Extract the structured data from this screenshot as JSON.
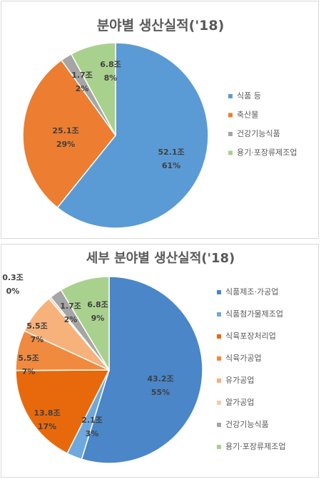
{
  "chart_data": [
    {
      "type": "pie",
      "title": "분야별 생산실적('18)",
      "slices": [
        {
          "name": "식품 등",
          "value": 52.1,
          "value_label": "52.1조",
          "percent_label": "61%",
          "color": "#5b9bd5"
        },
        {
          "name": "축산물",
          "value": 25.1,
          "value_label": "25.1조",
          "percent_label": "29%",
          "color": "#ed7d31"
        },
        {
          "name": "건강기능식품",
          "value": 1.7,
          "value_label": "1.7조",
          "percent_label": "2%",
          "color": "#a5a5a5"
        },
        {
          "name": "용기·포장류제조업",
          "value": 6.8,
          "value_label": "6.8조",
          "percent_label": "8%",
          "color": "#a9d18e"
        }
      ],
      "legend_position": "right"
    },
    {
      "type": "pie",
      "title": "세부 분야별 생산실적('18)",
      "slices": [
        {
          "name": "식품제조·가공업",
          "value": 43.2,
          "value_label": "43.2조",
          "percent_label": "55%",
          "color": "#4a86c8"
        },
        {
          "name": "식품첨가물제조업",
          "value": 2.1,
          "value_label": "2.1조",
          "percent_label": "3%",
          "color": "#6fa8dc"
        },
        {
          "name": "식육포장처리업",
          "value": 13.8,
          "value_label": "13.8조",
          "percent_label": "17%",
          "color": "#e8690b"
        },
        {
          "name": "식육가공업",
          "value": 5.5,
          "value_label": "5.5조",
          "percent_label": "7%",
          "color": "#f08a3e"
        },
        {
          "name": "유가공업",
          "value": 5.5,
          "value_label": "5.5조",
          "percent_label": "7%",
          "color": "#f7b17a"
        },
        {
          "name": "알가공업",
          "value": 0.3,
          "value_label": "0.3조",
          "percent_label": "0%",
          "color": "#f9cba4"
        },
        {
          "name": "건강기능식품",
          "value": 1.7,
          "value_label": "1.7조",
          "percent_label": "2%",
          "color": "#a5a5a5"
        },
        {
          "name": "용기·포장류제조업",
          "value": 6.8,
          "value_label": "6.8조",
          "percent_label": "9%",
          "color": "#a9d18e"
        }
      ],
      "legend_position": "right"
    }
  ]
}
